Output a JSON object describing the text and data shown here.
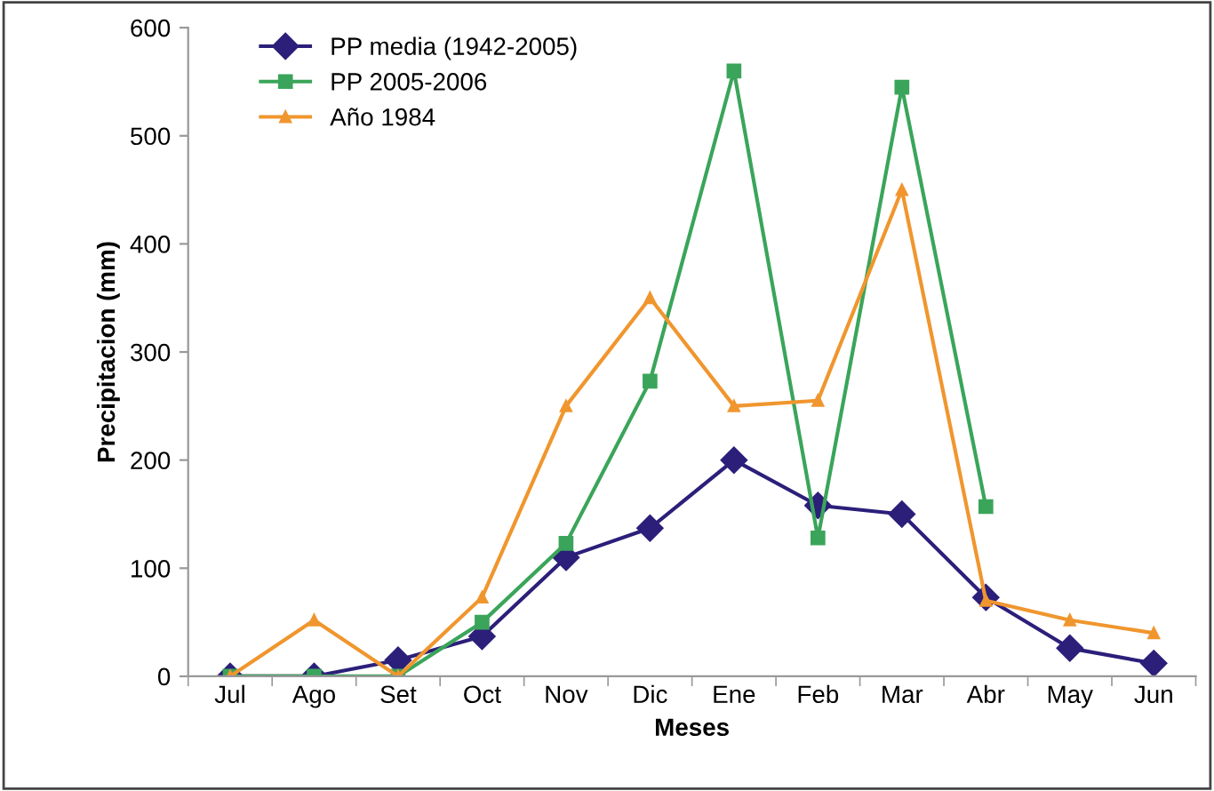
{
  "chart_data": {
    "type": "line",
    "xlabel": "Meses",
    "ylabel": "Precipitacion (mm)",
    "categories": [
      "Jul",
      "Ago",
      "Set",
      "Oct",
      "Nov",
      "Dic",
      "Ene",
      "Feb",
      "Mar",
      "Abr",
      "May",
      "Jun"
    ],
    "series": [
      {
        "name": "PP media (1942-2005)",
        "color": "#2b1f7a",
        "marker": "diamond",
        "values": [
          0,
          0,
          15,
          37,
          110,
          137,
          200,
          158,
          150,
          73,
          26,
          12
        ]
      },
      {
        "name": "PP 2005-2006",
        "color": "#3aa55a",
        "marker": "square",
        "values": [
          0,
          0,
          0,
          50,
          123,
          273,
          560,
          128,
          545,
          157,
          null,
          null
        ]
      },
      {
        "name": "Año 1984",
        "color": "#f0962e",
        "marker": "triangle",
        "values": [
          0,
          52,
          0,
          73,
          250,
          350,
          250,
          255,
          450,
          70,
          52,
          40
        ]
      }
    ],
    "ylim": [
      0,
      600
    ],
    "yticks": [
      0,
      100,
      200,
      300,
      400,
      500,
      600
    ],
    "grid": false,
    "legend": "top left"
  }
}
